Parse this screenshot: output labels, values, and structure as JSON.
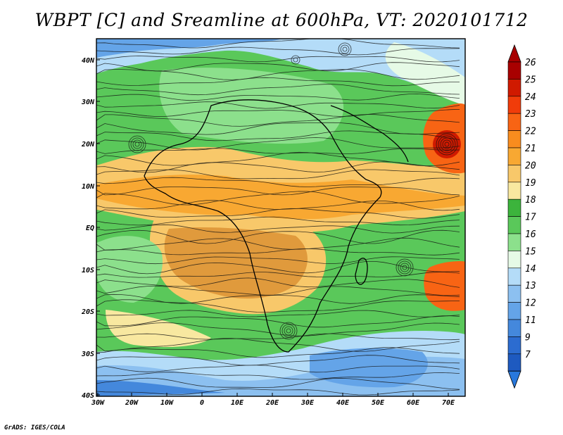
{
  "title": "WBPT [C] and Sreamline at 600hPa, VT: 2020101712",
  "credit": "GrADS: IGES/COLA",
  "lon_labels": [
    "30W",
    "20W",
    "10W",
    "0",
    "10E",
    "20E",
    "30E",
    "40E",
    "50E",
    "60E",
    "70E"
  ],
  "lat_labels": [
    "40N",
    "30N",
    "20N",
    "10N",
    "EQ",
    "10S",
    "20S",
    "30S",
    "40S"
  ],
  "colorbar": {
    "labels": [
      "26",
      "25",
      "24",
      "23",
      "22",
      "21",
      "20",
      "19",
      "18",
      "17",
      "16",
      "15",
      "14",
      "13",
      "12",
      "11",
      "9",
      "7"
    ],
    "colors": [
      "#a80000",
      "#d01a00",
      "#f03c0a",
      "#f86414",
      "#f88c1e",
      "#f8a832",
      "#f8c86a",
      "#f8e8a0",
      "#3cb43c",
      "#5ac85a",
      "#8ce08c",
      "#e6fae6",
      "#b4dcf8",
      "#8cc0f0",
      "#64a4e8",
      "#4488dc",
      "#2c6cd0",
      "#1e5ac0"
    ],
    "top_color": "#a80000",
    "bottom_color": "#2878dc"
  }
}
